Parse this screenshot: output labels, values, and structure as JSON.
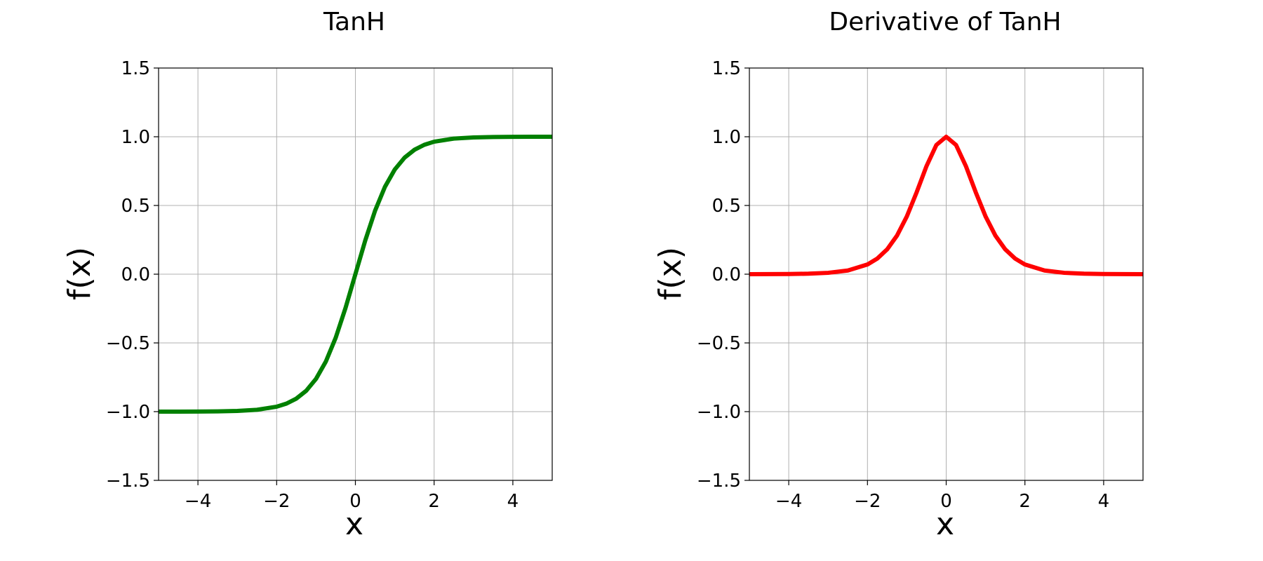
{
  "chart_data": [
    {
      "type": "line",
      "title": "TanH",
      "xlabel": "x",
      "ylabel": "f(x)",
      "xlim": [
        -5,
        5
      ],
      "ylim": [
        -1.5,
        1.5
      ],
      "x_ticks": [
        -4,
        -2,
        0,
        2,
        4
      ],
      "x_tick_labels": [
        "−4",
        "−2",
        "0",
        "2",
        "4"
      ],
      "y_ticks": [
        -1.5,
        -1.0,
        -0.5,
        0.0,
        0.5,
        1.0,
        1.5
      ],
      "y_tick_labels": [
        "−1.5",
        "−1.0",
        "−0.5",
        "0.0",
        "0.5",
        "1.0",
        "1.5"
      ],
      "grid": true,
      "series": [
        {
          "color": "#008000",
          "x": [
            -5,
            -4.5,
            -4,
            -3.5,
            -3,
            -2.5,
            -2,
            -1.75,
            -1.5,
            -1.25,
            -1,
            -0.75,
            -0.5,
            -0.25,
            0,
            0.25,
            0.5,
            0.75,
            1,
            1.25,
            1.5,
            1.75,
            2,
            2.5,
            3,
            3.5,
            4,
            4.5,
            5
          ],
          "values": [
            -0.9999,
            -0.9998,
            -0.9993,
            -0.9982,
            -0.9951,
            -0.9866,
            -0.964,
            -0.9414,
            -0.9051,
            -0.8483,
            -0.7616,
            -0.6351,
            -0.4621,
            -0.2449,
            0,
            0.2449,
            0.4621,
            0.6351,
            0.7616,
            0.8483,
            0.9051,
            0.9414,
            0.964,
            0.9866,
            0.9951,
            0.9982,
            0.9993,
            0.9998,
            0.9999
          ]
        }
      ]
    },
    {
      "type": "line",
      "title": "Derivative of TanH",
      "xlabel": "x",
      "ylabel": "f(x)",
      "xlim": [
        -5,
        5
      ],
      "ylim": [
        -1.5,
        1.5
      ],
      "x_ticks": [
        -4,
        -2,
        0,
        2,
        4
      ],
      "x_tick_labels": [
        "−4",
        "−2",
        "0",
        "2",
        "4"
      ],
      "y_ticks": [
        -1.5,
        -1.0,
        -0.5,
        0.0,
        0.5,
        1.0,
        1.5
      ],
      "y_tick_labels": [
        "−1.5",
        "−1.0",
        "−0.5",
        "0.0",
        "0.5",
        "1.0",
        "1.5"
      ],
      "grid": true,
      "series": [
        {
          "color": "#ff0000",
          "x": [
            -5,
            -4.5,
            -4,
            -3.5,
            -3,
            -2.5,
            -2,
            -1.75,
            -1.5,
            -1.25,
            -1,
            -0.75,
            -0.5,
            -0.25,
            0,
            0.25,
            0.5,
            0.75,
            1,
            1.25,
            1.5,
            1.75,
            2,
            2.5,
            3,
            3.5,
            4,
            4.5,
            5
          ],
          "values": [
            0.0002,
            0.0005,
            0.0013,
            0.0036,
            0.0099,
            0.0266,
            0.0707,
            0.1138,
            0.1807,
            0.2805,
            0.42,
            0.5966,
            0.7864,
            0.94,
            1.0,
            0.94,
            0.7864,
            0.5966,
            0.42,
            0.2805,
            0.1807,
            0.1138,
            0.0707,
            0.0266,
            0.0099,
            0.0036,
            0.0013,
            0.0005,
            0.0002
          ]
        }
      ]
    }
  ]
}
